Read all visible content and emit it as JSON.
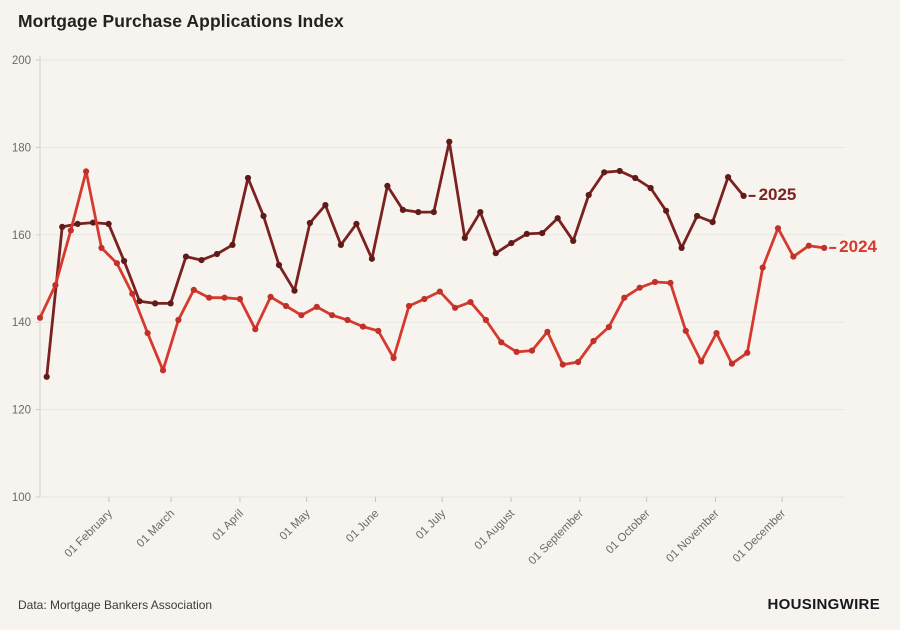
{
  "page": {
    "title": "Mortgage Purchase Applications Index",
    "source_note": "Data: Mortgage Bankers Association",
    "brand": "HOUSINGWIRE"
  },
  "chart_data": {
    "type": "line",
    "title": "Mortgage Purchase Applications Index",
    "xlabel": "",
    "ylabel": "",
    "ylim": [
      100,
      200
    ],
    "yticks": [
      100,
      120,
      140,
      160,
      180,
      200
    ],
    "grid": "horizontal",
    "legend_position": "line-end-right",
    "background": "#f7f4ef",
    "x_tick_labels": [
      "01 February",
      "01 March",
      "01 April",
      "01 May",
      "01 June",
      "01 July",
      "01 August",
      "01 September",
      "01 October",
      "01 November",
      "01 December"
    ],
    "series": [
      {
        "name": "2025",
        "color": "#7b2220",
        "marker_color": "#5f1b19",
        "cadence": "weekly",
        "start_day_of_year": 3,
        "step_days": 6.97,
        "values": [
          127.5,
          161.8,
          162.5,
          162.8,
          162.5,
          154.0,
          144.8,
          144.3,
          144.3,
          155.0,
          154.2,
          155.6,
          157.7,
          173.0,
          164.3,
          153.1,
          147.2,
          162.7,
          166.8,
          157.7,
          162.5,
          154.5,
          171.2,
          165.7,
          165.2,
          165.2,
          181.3,
          159.3,
          165.2,
          155.8,
          158.1,
          160.2,
          160.4,
          163.8,
          158.6,
          169.1,
          174.3,
          174.6,
          173.0,
          170.7,
          165.5,
          157.0,
          164.3,
          162.9,
          173.2,
          168.9
        ]
      },
      {
        "name": "2024",
        "color": "#d6392e",
        "marker_color": "#c23129",
        "cadence": "weekly",
        "start_day_of_year": 0,
        "step_days": 6.92,
        "values": [
          141.0,
          148.5,
          161.0,
          174.5,
          157.0,
          153.5,
          146.5,
          137.5,
          129.0,
          140.5,
          147.4,
          145.6,
          145.6,
          145.3,
          138.4,
          145.8,
          143.7,
          141.6,
          143.5,
          141.6,
          140.5,
          139.0,
          138.0,
          131.8,
          143.7,
          145.3,
          147.0,
          143.3,
          144.6,
          140.5,
          135.4,
          133.2,
          133.5,
          137.8,
          130.3,
          130.9,
          135.7,
          138.9,
          145.6,
          147.9,
          149.2,
          149.0,
          138.0,
          131.0,
          137.5,
          130.5,
          133.0,
          152.5,
          161.5,
          155.0,
          157.5,
          157.0
        ]
      }
    ]
  }
}
